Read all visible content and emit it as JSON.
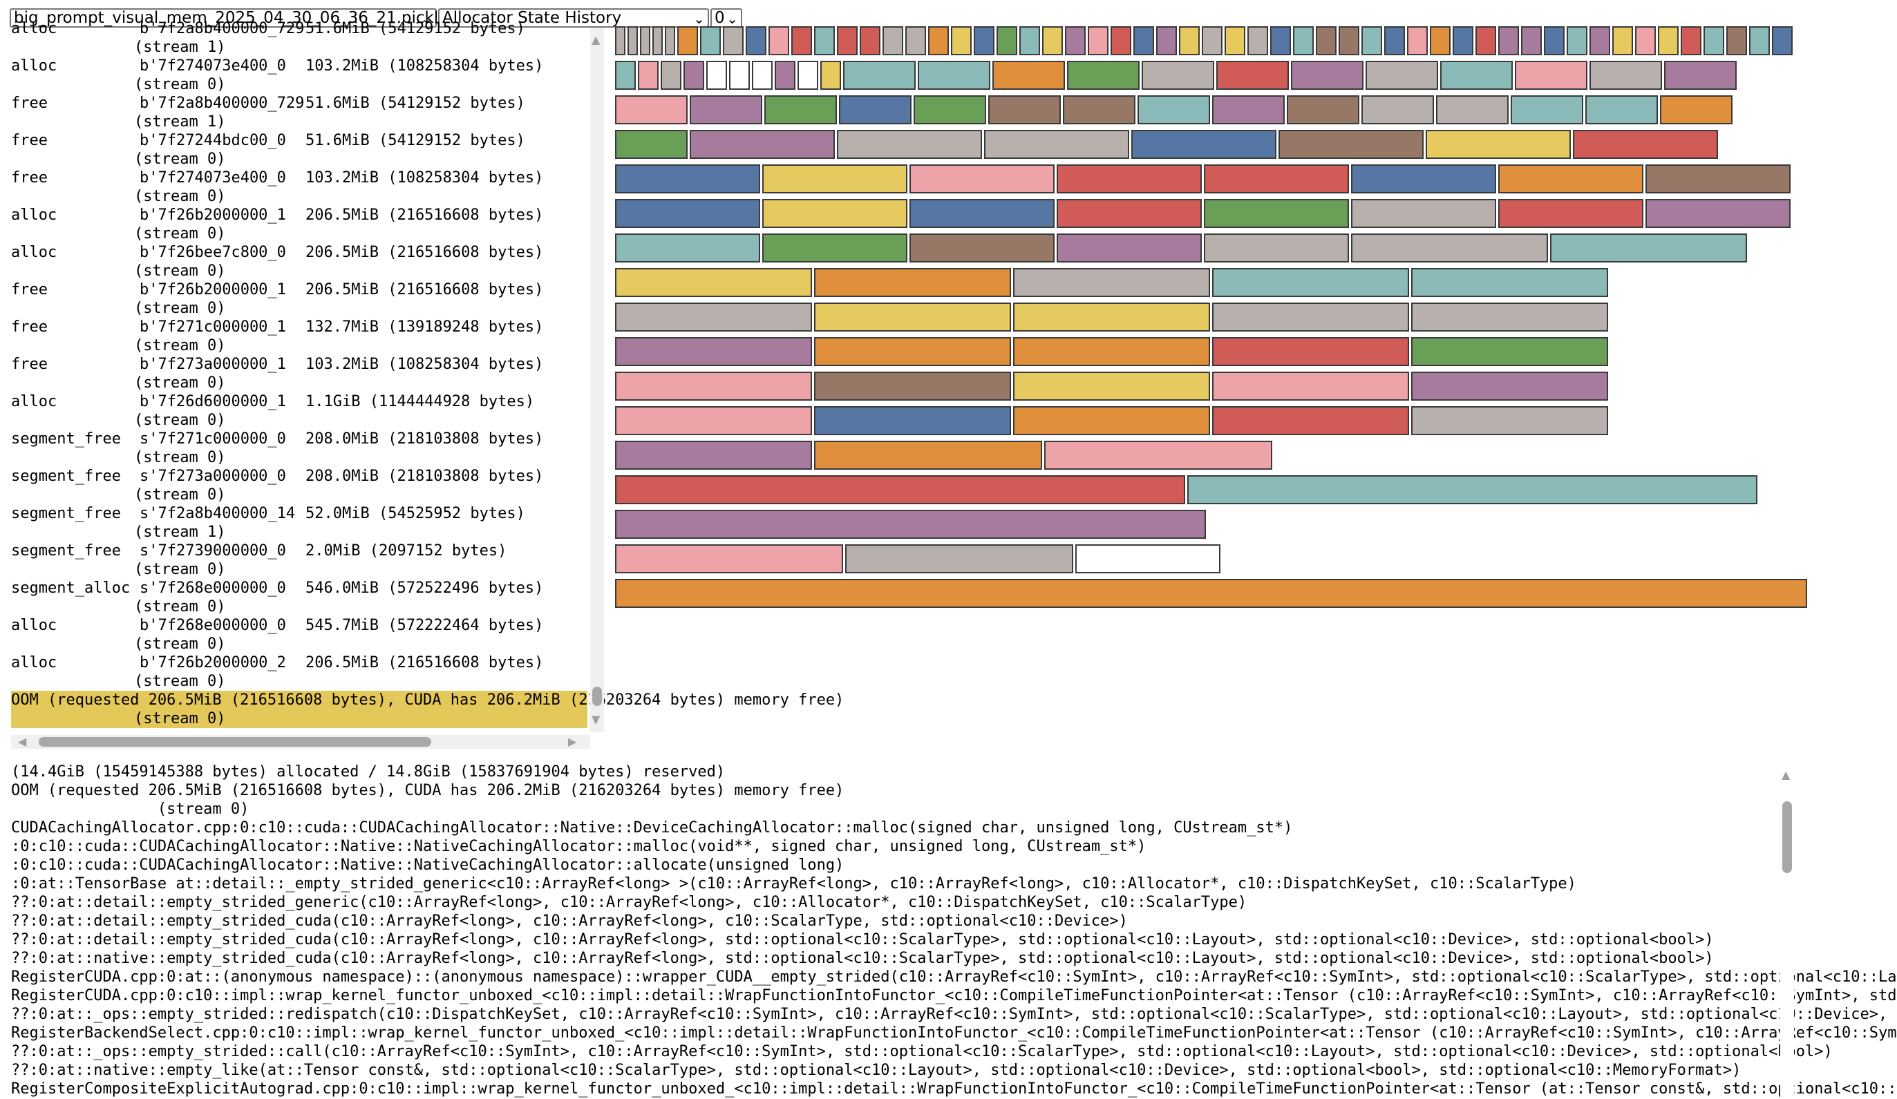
{
  "controls": {
    "file": "big_prompt_visual_mem_2025_04_30_06_36_21.pickle",
    "view": "Allocator State History",
    "index": "0"
  },
  "trace": [
    {
      "action": "alloc",
      "addr": "b'7f2a8b400000_729",
      "size": "51.6MiB (54129152 bytes)",
      "stream": "(stream 1)"
    },
    {
      "action": "alloc",
      "addr": "b'7f274073e400_0",
      "size": "103.2MiB (108258304 bytes)",
      "stream": "(stream 0)"
    },
    {
      "action": "free",
      "addr": "b'7f2a8b400000_729",
      "size": "51.6MiB (54129152 bytes)",
      "stream": "(stream 1)"
    },
    {
      "action": "free",
      "addr": "b'7f27244bdc00_0",
      "size": "51.6MiB (54129152 bytes)",
      "stream": "(stream 0)"
    },
    {
      "action": "free",
      "addr": "b'7f274073e400_0",
      "size": "103.2MiB (108258304 bytes)",
      "stream": "(stream 0)"
    },
    {
      "action": "alloc",
      "addr": "b'7f26b2000000_1",
      "size": "206.5MiB (216516608 bytes)",
      "stream": "(stream 0)"
    },
    {
      "action": "alloc",
      "addr": "b'7f26bee7c800_0",
      "size": "206.5MiB (216516608 bytes)",
      "stream": "(stream 0)"
    },
    {
      "action": "free",
      "addr": "b'7f26b2000000_1",
      "size": "206.5MiB (216516608 bytes)",
      "stream": "(stream 0)"
    },
    {
      "action": "free",
      "addr": "b'7f271c000000_1",
      "size": "132.7MiB (139189248 bytes)",
      "stream": "(stream 0)"
    },
    {
      "action": "free",
      "addr": "b'7f273a000000_1",
      "size": "103.2MiB (108258304 bytes)",
      "stream": "(stream 0)"
    },
    {
      "action": "alloc",
      "addr": "b'7f26d6000000_1",
      "size": "1.1GiB (1144444928 bytes)",
      "stream": "(stream 0)"
    },
    {
      "action": "segment_free",
      "addr": "s'7f271c000000_0",
      "size": "208.0MiB (218103808 bytes)",
      "stream": "(stream 0)"
    },
    {
      "action": "segment_free",
      "addr": "s'7f273a000000_0",
      "size": "208.0MiB (218103808 bytes)",
      "stream": "(stream 0)"
    },
    {
      "action": "segment_free",
      "addr": "s'7f2a8b400000_14",
      "size": "52.0MiB (54525952 bytes)",
      "stream": "(stream 1)"
    },
    {
      "action": "segment_free",
      "addr": "s'7f2739000000_0",
      "size": "2.0MiB (2097152 bytes)",
      "stream": "(stream 0)"
    },
    {
      "action": "segment_alloc",
      "addr": "s'7f268e000000_0",
      "size": "546.0MiB (572522496 bytes)",
      "stream": "(stream 0)"
    },
    {
      "action": "alloc",
      "addr": "b'7f268e000000_0",
      "size": "545.7MiB (572222464 bytes)",
      "stream": "(stream 0)"
    },
    {
      "action": "alloc",
      "addr": "b'7f26b2000000_2",
      "size": "206.5MiB (216516608 bytes)",
      "stream": "(stream 0)"
    }
  ],
  "selected_trace": {
    "text": "OOM (requested 206.5MiB (216516608 bytes), CUDA has 206.2MiB (216203264 bytes) memory free)",
    "stream": "(stream 0)"
  },
  "context": [
    "(14.4GiB (15459145388 bytes) allocated / 14.8GiB (15837691904 bytes) reserved)",
    "OOM (requested 206.5MiB (216516608 bytes), CUDA has 206.2MiB (216203264 bytes) memory free)",
    "                (stream 0)",
    "CUDACachingAllocator.cpp:0:c10::cuda::CUDACachingAllocator::Native::DeviceCachingAllocator::malloc(signed char, unsigned long, CUstream_st*)",
    ":0:c10::cuda::CUDACachingAllocator::Native::NativeCachingAllocator::malloc(void**, signed char, unsigned long, CUstream_st*)",
    ":0:c10::cuda::CUDACachingAllocator::Native::NativeCachingAllocator::allocate(unsigned long)",
    ":0:at::TensorBase at::detail::_empty_strided_generic<c10::ArrayRef<long> >(c10::ArrayRef<long>, c10::ArrayRef<long>, c10::Allocator*, c10::DispatchKeySet, c10::ScalarType)",
    "??:0:at::detail::empty_strided_generic(c10::ArrayRef<long>, c10::ArrayRef<long>, c10::Allocator*, c10::DispatchKeySet, c10::ScalarType)",
    "??:0:at::detail::empty_strided_cuda(c10::ArrayRef<long>, c10::ArrayRef<long>, c10::ScalarType, std::optional<c10::Device>)",
    "??:0:at::detail::empty_strided_cuda(c10::ArrayRef<long>, c10::ArrayRef<long>, std::optional<c10::ScalarType>, std::optional<c10::Layout>, std::optional<c10::Device>, std::optional<bool>)",
    "??:0:at::native::empty_strided_cuda(c10::ArrayRef<long>, c10::ArrayRef<long>, std::optional<c10::ScalarType>, std::optional<c10::Layout>, std::optional<c10::Device>, std::optional<bool>)",
    "RegisterCUDA.cpp:0:at::(anonymous namespace)::(anonymous namespace)::wrapper_CUDA__empty_strided(c10::ArrayRef<c10::SymInt>, c10::ArrayRef<c10::SymInt>, std::optional<c10::ScalarType>, std::optional<c10::La",
    "RegisterCUDA.cpp:0:c10::impl::wrap_kernel_functor_unboxed_<c10::impl::detail::WrapFunctionIntoFunctor_<c10::CompileTimeFunctionPointer<at::Tensor (c10::ArrayRef<c10::SymInt>, c10::ArrayRef<c10::SymInt>, std",
    "??:0:at::_ops::empty_strided::redispatch(c10::DispatchKeySet, c10::ArrayRef<c10::SymInt>, c10::ArrayRef<c10::SymInt>, std::optional<c10::ScalarType>, std::optional<c10::Layout>, std::optional<c10::Device>,",
    "RegisterBackendSelect.cpp:0:c10::impl::wrap_kernel_functor_unboxed_<c10::impl::detail::WrapFunctionIntoFunctor_<c10::CompileTimeFunctionPointer<at::Tensor (c10::ArrayRef<c10::SymInt>, c10::ArrayRef<c10::Sym",
    "??:0:at::_ops::empty_strided::call(c10::ArrayRef<c10::SymInt>, c10::ArrayRef<c10::SymInt>, std::optional<c10::ScalarType>, std::optional<c10::Layout>, std::optional<c10::Device>, std::optional<bool>)",
    "??:0:at::native::empty_like(at::Tensor const&, std::optional<c10::ScalarType>, std::optional<c10::Layout>, std::optional<c10::Device>, std::optional<bool>, std::optional<c10::MemoryFormat>)",
    "RegisterCompositeExplicitAutograd.cpp:0:c10::impl::wrap_kernel_functor_unboxed_<c10::impl::detail::WrapFunctionIntoFunctor_<c10::CompileTimeFunctionPointer<at::Tensor (at::Tensor const&, std::optional<c10::"
  ],
  "colors": {
    "blue": "#5677a4",
    "orange": "#e08f3c",
    "red": "#d05b57",
    "teal": "#8bbbb8",
    "green": "#6a9f58",
    "yellow": "#e6c95f",
    "purple": "#a77b9e",
    "pink": "#eda3a8",
    "brown": "#977866",
    "grey": "#b8b0ac",
    "white": "#ffffff",
    "selected_highlight": "#e5c85a"
  },
  "memory_rows": [
    {
      "blocks": [
        [
          "grey",
          1
        ],
        [
          "grey",
          1
        ],
        [
          "grey",
          1
        ],
        [
          "grey",
          1
        ],
        [
          "grey",
          1
        ],
        [
          "orange",
          2
        ],
        [
          "teal",
          2
        ],
        [
          "grey",
          2
        ],
        [
          "blue",
          2
        ],
        [
          "pink",
          2
        ],
        [
          "red",
          2
        ],
        [
          "teal",
          2
        ],
        [
          "red",
          2
        ],
        [
          "red",
          2
        ],
        [
          "grey",
          2
        ],
        [
          "grey",
          2
        ],
        [
          "orange",
          2
        ],
        [
          "yellow",
          2
        ],
        [
          "blue",
          2
        ],
        [
          "green",
          2
        ],
        [
          "teal",
          2
        ],
        [
          "yellow",
          2
        ],
        [
          "purple",
          2
        ],
        [
          "pink",
          2
        ],
        [
          "red",
          2
        ],
        [
          "blue",
          2
        ],
        [
          "purple",
          2
        ],
        [
          "yellow",
          2
        ],
        [
          "grey",
          2
        ],
        [
          "yellow",
          2
        ],
        [
          "grey",
          2
        ],
        [
          "blue",
          2
        ],
        [
          "teal",
          2
        ],
        [
          "brown",
          2
        ],
        [
          "brown",
          2
        ],
        [
          "teal",
          2
        ],
        [
          "blue",
          2
        ],
        [
          "pink",
          2
        ],
        [
          "orange",
          2
        ],
        [
          "blue",
          2
        ],
        [
          "red",
          2
        ],
        [
          "purple",
          2
        ],
        [
          "purple",
          2
        ],
        [
          "blue",
          2
        ],
        [
          "teal",
          2
        ],
        [
          "purple",
          2
        ],
        [
          "yellow",
          2
        ],
        [
          "pink",
          2
        ],
        [
          "yellow",
          2
        ],
        [
          "red",
          2
        ],
        [
          "teal",
          2
        ],
        [
          "brown",
          2
        ],
        [
          "teal",
          2
        ],
        [
          "blue",
          2
        ]
      ]
    },
    {
      "blocks": [
        [
          "teal",
          2
        ],
        [
          "pink",
          2
        ],
        [
          "grey",
          2
        ],
        [
          "purple",
          2
        ],
        [
          "white",
          2
        ],
        [
          "white",
          2
        ],
        [
          "white",
          2
        ],
        [
          "purple",
          2
        ],
        [
          "white",
          2
        ],
        [
          "yellow",
          2
        ],
        [
          "teal",
          7
        ],
        [
          "teal",
          7
        ],
        [
          "orange",
          7
        ],
        [
          "green",
          7
        ],
        [
          "grey",
          7
        ],
        [
          "red",
          7
        ],
        [
          "purple",
          7
        ],
        [
          "grey",
          7
        ],
        [
          "teal",
          7
        ],
        [
          "pink",
          7
        ],
        [
          "grey",
          7
        ],
        [
          "purple",
          7
        ]
      ]
    },
    {
      "blocks": [
        [
          "pink",
          7
        ],
        [
          "purple",
          7
        ],
        [
          "green",
          7
        ],
        [
          "blue",
          7
        ],
        [
          "green",
          7
        ],
        [
          "brown",
          7
        ],
        [
          "brown",
          7
        ],
        [
          "teal",
          7
        ],
        [
          "purple",
          7
        ],
        [
          "brown",
          7
        ],
        [
          "grey",
          7
        ],
        [
          "grey",
          7
        ],
        [
          "teal",
          7
        ],
        [
          "teal",
          7
        ],
        [
          "orange",
          7
        ]
      ]
    },
    {
      "blocks": [
        [
          "green",
          7
        ],
        [
          "purple",
          14
        ],
        [
          "grey",
          14
        ],
        [
          "grey",
          14
        ],
        [
          "blue",
          14
        ],
        [
          "brown",
          14
        ],
        [
          "yellow",
          14
        ],
        [
          "red",
          14
        ]
      ]
    },
    {
      "blocks": [
        [
          "blue",
          14
        ],
        [
          "yellow",
          14
        ],
        [
          "pink",
          14
        ],
        [
          "red",
          14
        ],
        [
          "red",
          14
        ],
        [
          "blue",
          14
        ],
        [
          "orange",
          14
        ],
        [
          "brown",
          14
        ]
      ]
    },
    {
      "blocks": [
        [
          "blue",
          14
        ],
        [
          "yellow",
          14
        ],
        [
          "blue",
          14
        ],
        [
          "red",
          14
        ],
        [
          "green",
          14
        ],
        [
          "grey",
          14
        ],
        [
          "red",
          14
        ],
        [
          "purple",
          14
        ]
      ]
    },
    {
      "blocks": [
        [
          "teal",
          14
        ],
        [
          "green",
          14
        ],
        [
          "brown",
          14
        ],
        [
          "purple",
          14
        ],
        [
          "grey",
          14
        ],
        [
          "grey",
          19
        ],
        [
          "teal",
          19
        ]
      ]
    },
    {
      "blocks": [
        [
          "yellow",
          19
        ],
        [
          "orange",
          19
        ],
        [
          "grey",
          19
        ],
        [
          "teal",
          19
        ],
        [
          "teal",
          19
        ]
      ]
    },
    {
      "blocks": [
        [
          "grey",
          19
        ],
        [
          "yellow",
          19
        ],
        [
          "yellow",
          19
        ],
        [
          "grey",
          19
        ],
        [
          "grey",
          19
        ]
      ]
    },
    {
      "blocks": [
        [
          "purple",
          19
        ],
        [
          "orange",
          19
        ],
        [
          "orange",
          19
        ],
        [
          "red",
          19
        ],
        [
          "green",
          19
        ]
      ]
    },
    {
      "blocks": [
        [
          "pink",
          19
        ],
        [
          "brown",
          19
        ],
        [
          "yellow",
          19
        ],
        [
          "pink",
          19
        ],
        [
          "purple",
          19
        ]
      ]
    },
    {
      "blocks": [
        [
          "pink",
          19
        ],
        [
          "blue",
          19
        ],
        [
          "orange",
          19
        ],
        [
          "red",
          19
        ],
        [
          "grey",
          19
        ]
      ]
    },
    {
      "blocks": [
        [
          "purple",
          19
        ],
        [
          "orange",
          22
        ],
        [
          "pink",
          22
        ]
      ]
    },
    {
      "blocks": [
        [
          "red",
          55
        ],
        [
          "teal",
          55
        ]
      ]
    },
    {
      "blocks": [
        [
          "purple",
          57
        ]
      ]
    },
    {
      "blocks": [
        [
          "pink",
          22
        ],
        [
          "grey",
          22
        ],
        [
          "white",
          14
        ]
      ]
    },
    {
      "blocks": [
        [
          "orange",
          115
        ]
      ]
    }
  ]
}
